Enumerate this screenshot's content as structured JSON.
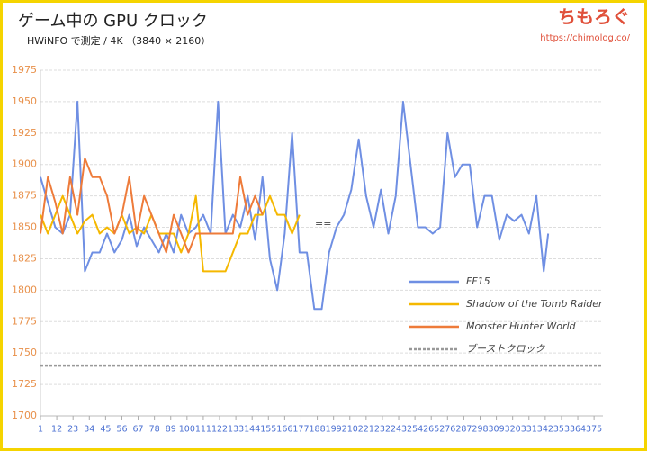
{
  "chart_data": {
    "type": "line",
    "title": "ゲーム中の GPU クロック",
    "subtitle": "HWiNFO で測定 / 4K （3840 × 2160）",
    "brand": "ちもろぐ",
    "url": "https://chimolog.co/",
    "annotation": "==",
    "xlim": [
      1,
      381
    ],
    "xticks": [
      1,
      12,
      23,
      34,
      45,
      56,
      67,
      78,
      89,
      100,
      111,
      122,
      133,
      144,
      155,
      166,
      177,
      188,
      199,
      210,
      221,
      232,
      243,
      254,
      265,
      276,
      287,
      298,
      309,
      320,
      331,
      342,
      353,
      364,
      375
    ],
    "ylim": [
      1700,
      1975
    ],
    "yticks": [
      1700,
      1725,
      1750,
      1775,
      1800,
      1825,
      1850,
      1875,
      1900,
      1925,
      1950,
      1975
    ],
    "grid": true,
    "series": [
      {
        "name": "FF15",
        "color": "#6f8fe3",
        "x": [
          1,
          6,
          11,
          16,
          21,
          26,
          31,
          36,
          41,
          46,
          51,
          56,
          61,
          66,
          71,
          76,
          81,
          86,
          91,
          96,
          101,
          106,
          111,
          116,
          121,
          126,
          131,
          136,
          141,
          146,
          151,
          156,
          161,
          166,
          171,
          176,
          181,
          186,
          191,
          196,
          201,
          206,
          211,
          216,
          221,
          226,
          231,
          236,
          241,
          246,
          251,
          256,
          261,
          266,
          271,
          276,
          281,
          286,
          291,
          296,
          301,
          306,
          311,
          316,
          321,
          326,
          331,
          336,
          341,
          344
        ],
        "values": [
          1890,
          1870,
          1850,
          1845,
          1860,
          1950,
          1815,
          1830,
          1830,
          1845,
          1830,
          1840,
          1860,
          1835,
          1850,
          1840,
          1830,
          1845,
          1830,
          1860,
          1845,
          1850,
          1860,
          1845,
          1950,
          1845,
          1860,
          1850,
          1875,
          1840,
          1890,
          1825,
          1800,
          1845,
          1925,
          1830,
          1830,
          1785,
          1785,
          1830,
          1850,
          1860,
          1880,
          1920,
          1875,
          1850,
          1880,
          1845,
          1875,
          1950,
          1900,
          1850,
          1850,
          1845,
          1850,
          1925,
          1890,
          1900,
          1900,
          1850,
          1875,
          1875,
          1840,
          1860,
          1855,
          1860,
          1845,
          1875,
          1815,
          1845
        ]
      },
      {
        "name": "Shadow of the Tomb Raider",
        "color": "#f5b800",
        "x": [
          1,
          6,
          11,
          16,
          21,
          26,
          31,
          36,
          41,
          46,
          51,
          56,
          61,
          66,
          71,
          76,
          81,
          86,
          91,
          96,
          101,
          106,
          111,
          116,
          121,
          126,
          131,
          136,
          141,
          146,
          151,
          156,
          161,
          166,
          171,
          176
        ],
        "values": [
          1860,
          1845,
          1860,
          1875,
          1860,
          1845,
          1855,
          1860,
          1845,
          1850,
          1845,
          1860,
          1845,
          1850,
          1845,
          1860,
          1845,
          1845,
          1845,
          1830,
          1845,
          1875,
          1815,
          1815,
          1815,
          1815,
          1830,
          1845,
          1845,
          1860,
          1860,
          1875,
          1860,
          1860,
          1845,
          1860
        ]
      },
      {
        "name": "Monster Hunter World",
        "color": "#ee7b3a",
        "x": [
          1,
          6,
          11,
          16,
          21,
          26,
          31,
          36,
          41,
          46,
          51,
          56,
          61,
          66,
          71,
          76,
          81,
          86,
          91,
          96,
          101,
          106,
          111,
          116,
          121,
          126,
          131,
          136,
          141,
          146,
          151
        ],
        "values": [
          1845,
          1890,
          1870,
          1845,
          1890,
          1860,
          1905,
          1890,
          1890,
          1875,
          1845,
          1860,
          1890,
          1845,
          1875,
          1860,
          1845,
          1830,
          1860,
          1845,
          1830,
          1845,
          1845,
          1845,
          1845,
          1845,
          1845,
          1890,
          1860,
          1875,
          1860
        ]
      }
    ],
    "reference_line": {
      "name": "ブーストクロック",
      "value": 1740,
      "color": "#999999"
    }
  }
}
